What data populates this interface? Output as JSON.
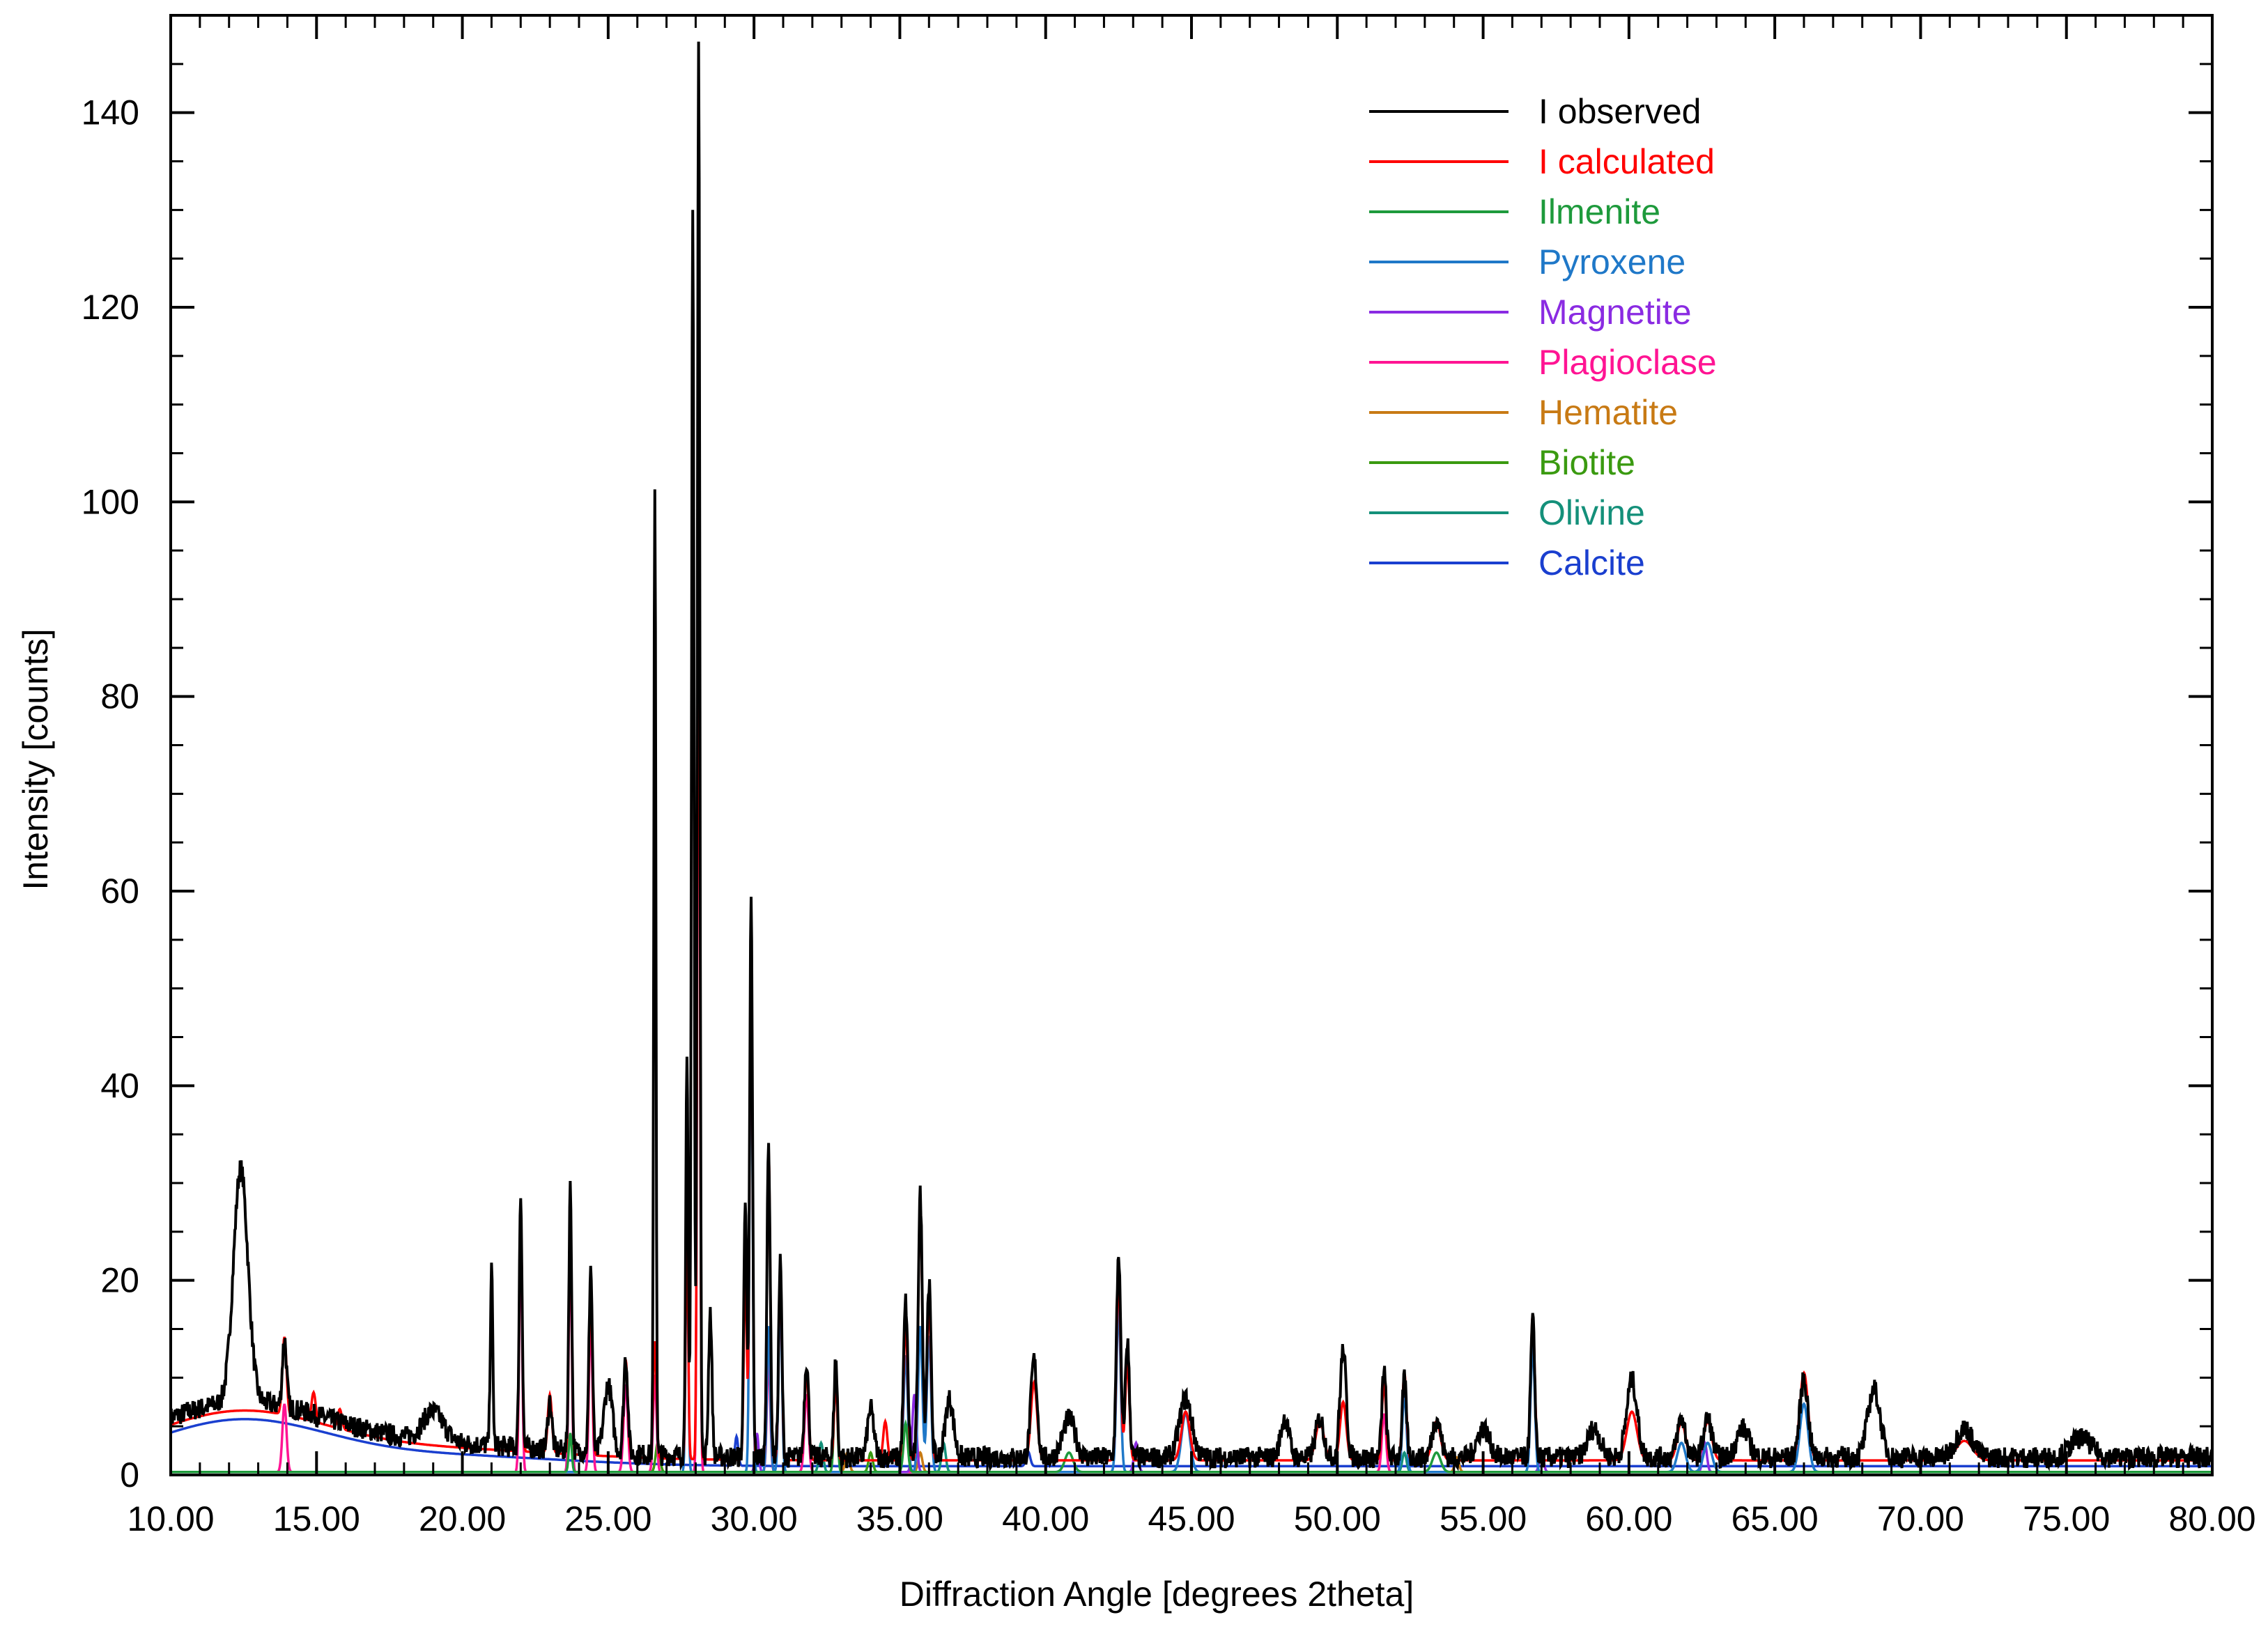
{
  "chart_data": {
    "type": "line",
    "title": "",
    "xlabel": "Diffraction Angle [degrees 2theta]",
    "ylabel": "Intensity [counts]",
    "xlim": [
      10.0,
      80.0
    ],
    "ylim": [
      0,
      150
    ],
    "x_ticks": [
      10,
      15,
      20,
      25,
      30,
      35,
      40,
      45,
      50,
      55,
      60,
      65,
      70,
      75,
      80
    ],
    "x_tick_labels": [
      "10.00",
      "15.00",
      "20.00",
      "25.00",
      "30.00",
      "35.00",
      "40.00",
      "45.00",
      "50.00",
      "55.00",
      "60.00",
      "65.00",
      "70.00",
      "75.00",
      "80.00"
    ],
    "y_ticks": [
      0,
      20,
      40,
      60,
      80,
      100,
      120,
      140
    ],
    "y_tick_labels": [
      "0",
      "20",
      "40",
      "60",
      "80",
      "100",
      "120",
      "140"
    ],
    "grid": false,
    "legend_position": "top-right",
    "series": [
      {
        "name": "I observed",
        "color": "#000000",
        "kind": "observed",
        "peaks": [
          [
            12.4,
            24,
            0.35
          ],
          [
            13.9,
            7,
            0.1
          ],
          [
            19.0,
            3,
            0.5
          ],
          [
            21.0,
            18,
            0.06
          ],
          [
            22.0,
            26,
            0.07
          ],
          [
            23.0,
            5,
            0.1
          ],
          [
            23.7,
            27,
            0.07
          ],
          [
            24.4,
            19,
            0.08
          ],
          [
            25.0,
            7,
            0.2
          ],
          [
            25.6,
            10,
            0.1
          ],
          [
            26.6,
            100,
            0.05
          ],
          [
            27.7,
            40,
            0.06
          ],
          [
            27.9,
            128,
            0.06
          ],
          [
            28.1,
            145,
            0.06
          ],
          [
            28.5,
            15,
            0.08
          ],
          [
            29.7,
            27,
            0.07
          ],
          [
            29.9,
            57,
            0.07
          ],
          [
            30.5,
            32,
            0.08
          ],
          [
            30.9,
            20,
            0.08
          ],
          [
            31.8,
            10,
            0.1
          ],
          [
            32.8,
            10,
            0.08
          ],
          [
            34.0,
            5,
            0.15
          ],
          [
            35.2,
            16,
            0.1
          ],
          [
            35.7,
            27,
            0.1
          ],
          [
            36.0,
            18,
            0.1
          ],
          [
            36.7,
            6,
            0.2
          ],
          [
            39.6,
            10,
            0.15
          ],
          [
            40.8,
            4,
            0.3
          ],
          [
            42.5,
            21,
            0.1
          ],
          [
            42.8,
            12,
            0.1
          ],
          [
            44.8,
            6,
            0.3
          ],
          [
            48.2,
            4,
            0.2
          ],
          [
            49.4,
            4,
            0.2
          ],
          [
            50.2,
            11,
            0.15
          ],
          [
            51.6,
            9,
            0.1
          ],
          [
            52.3,
            8,
            0.1
          ],
          [
            53.4,
            4,
            0.2
          ],
          [
            55.0,
            3,
            0.3
          ],
          [
            56.7,
            14,
            0.1
          ],
          [
            58.8,
            3,
            0.3
          ],
          [
            60.1,
            8,
            0.25
          ],
          [
            61.8,
            4,
            0.2
          ],
          [
            62.7,
            4,
            0.2
          ],
          [
            63.9,
            3,
            0.3
          ],
          [
            66.0,
            8,
            0.2
          ],
          [
            68.4,
            7,
            0.3
          ],
          [
            71.5,
            3,
            0.4
          ],
          [
            75.5,
            2,
            0.5
          ]
        ],
        "background": 1.8
      },
      {
        "name": "I calculated",
        "color": "#ff0000",
        "kind": "calculated",
        "peaks": [
          [
            13.9,
            8,
            0.1
          ],
          [
            14.9,
            3,
            0.1
          ],
          [
            15.8,
            2,
            0.1
          ],
          [
            22.0,
            25,
            0.07
          ],
          [
            23.0,
            6,
            0.1
          ],
          [
            23.7,
            25,
            0.07
          ],
          [
            24.4,
            17,
            0.08
          ],
          [
            25.6,
            10,
            0.1
          ],
          [
            26.6,
            12,
            0.08
          ],
          [
            27.7,
            25,
            0.06
          ],
          [
            28.1,
            105,
            0.06
          ],
          [
            29.7,
            20,
            0.07
          ],
          [
            29.9,
            55,
            0.07
          ],
          [
            30.5,
            32,
            0.08
          ],
          [
            30.9,
            19,
            0.08
          ],
          [
            31.8,
            9,
            0.1
          ],
          [
            32.8,
            8,
            0.08
          ],
          [
            34.5,
            4,
            0.1
          ],
          [
            35.2,
            14,
            0.1
          ],
          [
            35.7,
            26,
            0.1
          ],
          [
            36.0,
            16,
            0.1
          ],
          [
            39.6,
            8,
            0.15
          ],
          [
            42.5,
            19,
            0.1
          ],
          [
            42.8,
            10,
            0.1
          ],
          [
            44.8,
            5,
            0.2
          ],
          [
            49.4,
            4,
            0.2
          ],
          [
            50.2,
            6,
            0.15
          ],
          [
            51.6,
            8,
            0.1
          ],
          [
            52.3,
            9,
            0.1
          ],
          [
            53.4,
            4,
            0.2
          ],
          [
            56.7,
            15,
            0.1
          ],
          [
            60.1,
            5,
            0.25
          ],
          [
            61.8,
            4,
            0.2
          ],
          [
            62.7,
            4,
            0.2
          ],
          [
            66.0,
            9,
            0.2
          ],
          [
            71.5,
            2,
            0.4
          ]
        ],
        "background": 1.5
      },
      {
        "name": "Ilmenite",
        "color": "#1e9a3c",
        "kind": "phase",
        "peaks": [
          [
            23.7,
            4,
            0.07
          ],
          [
            32.8,
            10,
            0.08
          ],
          [
            35.2,
            5,
            0.1
          ],
          [
            40.8,
            2,
            0.2
          ],
          [
            53.4,
            2,
            0.2
          ]
        ]
      },
      {
        "name": "Pyroxene",
        "color": "#1f78c8",
        "kind": "phase",
        "peaks": [
          [
            27.7,
            26,
            0.06
          ],
          [
            29.9,
            52,
            0.07
          ],
          [
            30.5,
            15,
            0.08
          ],
          [
            30.9,
            18,
            0.08
          ],
          [
            35.2,
            12,
            0.1
          ],
          [
            35.7,
            15,
            0.1
          ],
          [
            36.0,
            14,
            0.1
          ],
          [
            42.5,
            17,
            0.1
          ],
          [
            44.8,
            6,
            0.2
          ],
          [
            52.3,
            8,
            0.1
          ],
          [
            56.7,
            13,
            0.1
          ],
          [
            61.8,
            3,
            0.2
          ],
          [
            62.7,
            3,
            0.2
          ],
          [
            66.0,
            7,
            0.2
          ]
        ]
      },
      {
        "name": "Magnetite",
        "color": "#8a2be2",
        "kind": "phase",
        "peaks": [
          [
            30.1,
            4,
            0.08
          ],
          [
            35.5,
            8,
            0.1
          ],
          [
            43.1,
            3,
            0.1
          ],
          [
            57.0,
            2,
            0.1
          ],
          [
            62.6,
            3,
            0.1
          ]
        ]
      },
      {
        "name": "Plagioclase",
        "color": "#ff1493",
        "kind": "phase",
        "peaks": [
          [
            13.9,
            7,
            0.1
          ],
          [
            22.0,
            24,
            0.07
          ],
          [
            23.7,
            24,
            0.07
          ],
          [
            24.4,
            16,
            0.08
          ],
          [
            25.6,
            9,
            0.1
          ],
          [
            26.6,
            10,
            0.08
          ],
          [
            28.1,
            102,
            0.06
          ],
          [
            30.5,
            12,
            0.08
          ],
          [
            31.8,
            8,
            0.1
          ],
          [
            51.6,
            6,
            0.1
          ]
        ]
      },
      {
        "name": "Hematite",
        "color": "#c87a14",
        "kind": "phase",
        "peaks": [
          [
            33.2,
            2,
            0.1
          ],
          [
            35.7,
            2,
            0.1
          ],
          [
            54.1,
            1.5,
            0.1
          ]
        ]
      },
      {
        "name": "Biotite",
        "color": "#3a9a10",
        "kind": "phase",
        "peaks": [
          [
            8.8,
            2,
            0.1
          ],
          [
            26.7,
            3,
            0.1
          ],
          [
            34.0,
            2,
            0.1
          ]
        ]
      },
      {
        "name": "Olivine",
        "color": "#14907a",
        "kind": "phase",
        "peaks": [
          [
            32.3,
            3,
            0.1
          ],
          [
            36.5,
            3,
            0.1
          ],
          [
            52.3,
            2,
            0.1
          ]
        ]
      },
      {
        "name": "Calcite",
        "color": "#1a3fcf",
        "kind": "calcite",
        "peaks": [
          [
            29.4,
            3,
            0.08
          ],
          [
            39.4,
            1.5,
            0.1
          ]
        ]
      }
    ]
  }
}
